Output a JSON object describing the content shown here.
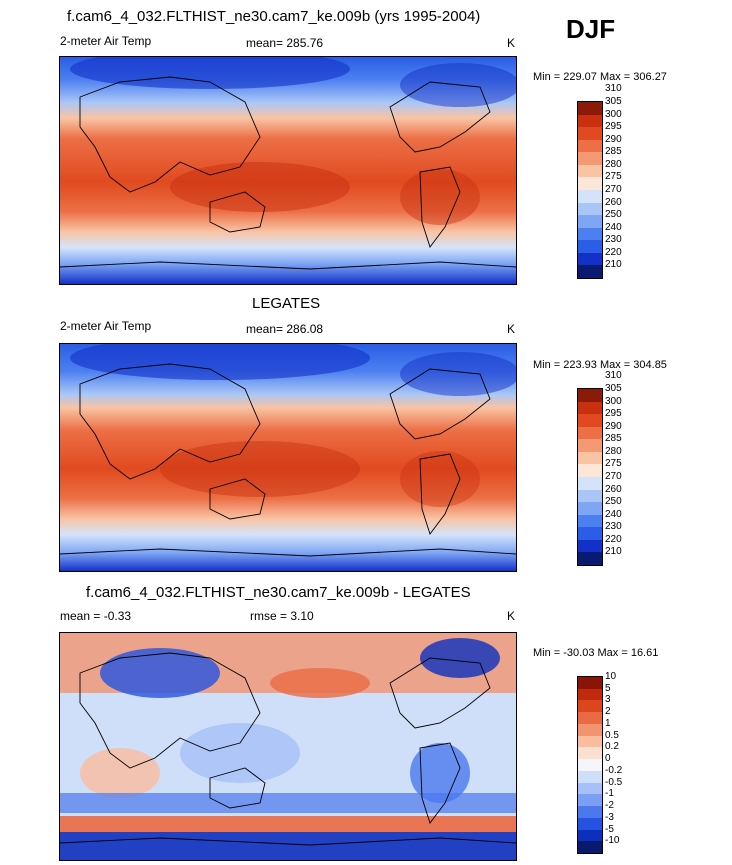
{
  "season": "DJF",
  "colors": {
    "abs_palette": [
      "#0a1a70",
      "#1331c8",
      "#2a5ee6",
      "#4c80f0",
      "#7ea6f5",
      "#a9c6f7",
      "#d4e3fa",
      "#fbe6d8",
      "#f9c4a4",
      "#f39a74",
      "#ec6f45",
      "#e14a20",
      "#c83010",
      "#8c1a08"
    ],
    "diff_palette": [
      "#081a6e",
      "#0d2fbe",
      "#2552e0",
      "#4b78ee",
      "#7a9ff4",
      "#a5c1f7",
      "#cfdff9",
      "#f6f6fa",
      "#fbe0cf",
      "#f9bc9e",
      "#f39470",
      "#ea6a43",
      "#dc451d",
      "#c02a0d",
      "#8a1506"
    ]
  },
  "chart_data": [
    {
      "type": "heatmap",
      "title": "f.cam6_4_032.FLTHIST_ne30.cam7_ke.009b (yrs 1995-2004)",
      "variable": "2-meter Air Temp",
      "mean_label": "mean= 285.76",
      "units": "K",
      "minmax": "Min = 229.07 Max = 306.27",
      "levels": [
        "210",
        "220",
        "230",
        "240",
        "250",
        "260",
        "270",
        "275",
        "280",
        "285",
        "290",
        "295",
        "300",
        "305",
        "310"
      ]
    },
    {
      "type": "heatmap",
      "title": "LEGATES",
      "variable": "2-meter Air Temp",
      "mean_label": "mean= 286.08",
      "units": "K",
      "minmax": "Min = 223.93 Max = 304.85",
      "levels": [
        "210",
        "220",
        "230",
        "240",
        "250",
        "260",
        "270",
        "275",
        "280",
        "285",
        "290",
        "295",
        "300",
        "305",
        "310"
      ]
    },
    {
      "type": "heatmap",
      "title": "f.cam6_4_032.FLTHIST_ne30.cam7_ke.009b - LEGATES",
      "mean_label": "mean =  -0.33",
      "rmse_label": "rmse =    3.10",
      "units": "K",
      "minmax": "Min = -30.03 Max =  16.61",
      "levels": [
        "-10",
        "-5",
        "-3",
        "-2",
        "-1",
        "-0.5",
        "-0.2",
        "0",
        "0.2",
        "0.5",
        "1",
        "2",
        "3",
        "5",
        "10"
      ]
    }
  ]
}
